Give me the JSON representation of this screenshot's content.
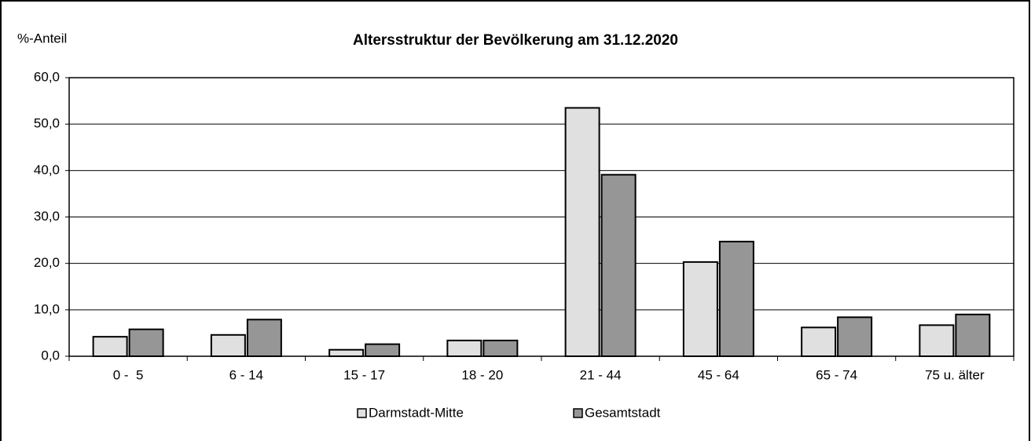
{
  "chart_data": {
    "type": "bar",
    "title": "Altersstruktur der Bevölkerung am 31.12.2020",
    "y_label": "%-Anteil",
    "categories": [
      "0 -  5",
      "6 - 14",
      "15 - 17",
      "18 - 20",
      "21 - 44",
      "45 - 64",
      "65 - 74",
      "75 u. älter"
    ],
    "series": [
      {
        "name": "Darmstadt-Mitte",
        "color": "#e0e0e0",
        "values": [
          4.2,
          4.6,
          1.4,
          3.4,
          53.5,
          20.3,
          6.2,
          6.7
        ]
      },
      {
        "name": "Gesamtstadt",
        "color": "#969696",
        "values": [
          5.8,
          7.9,
          2.6,
          3.4,
          39.1,
          24.7,
          8.4,
          9.0
        ]
      }
    ],
    "ylim": [
      0,
      60
    ],
    "yticks": [
      {
        "value": 0,
        "label": "0,0"
      },
      {
        "value": 10,
        "label": "10,0"
      },
      {
        "value": 20,
        "label": "20,0"
      },
      {
        "value": 30,
        "label": "30,0"
      },
      {
        "value": 40,
        "label": "40,0"
      },
      {
        "value": 50,
        "label": "50,0"
      },
      {
        "value": 60,
        "label": "60,0"
      }
    ],
    "grid": true,
    "legend": "bottom"
  }
}
